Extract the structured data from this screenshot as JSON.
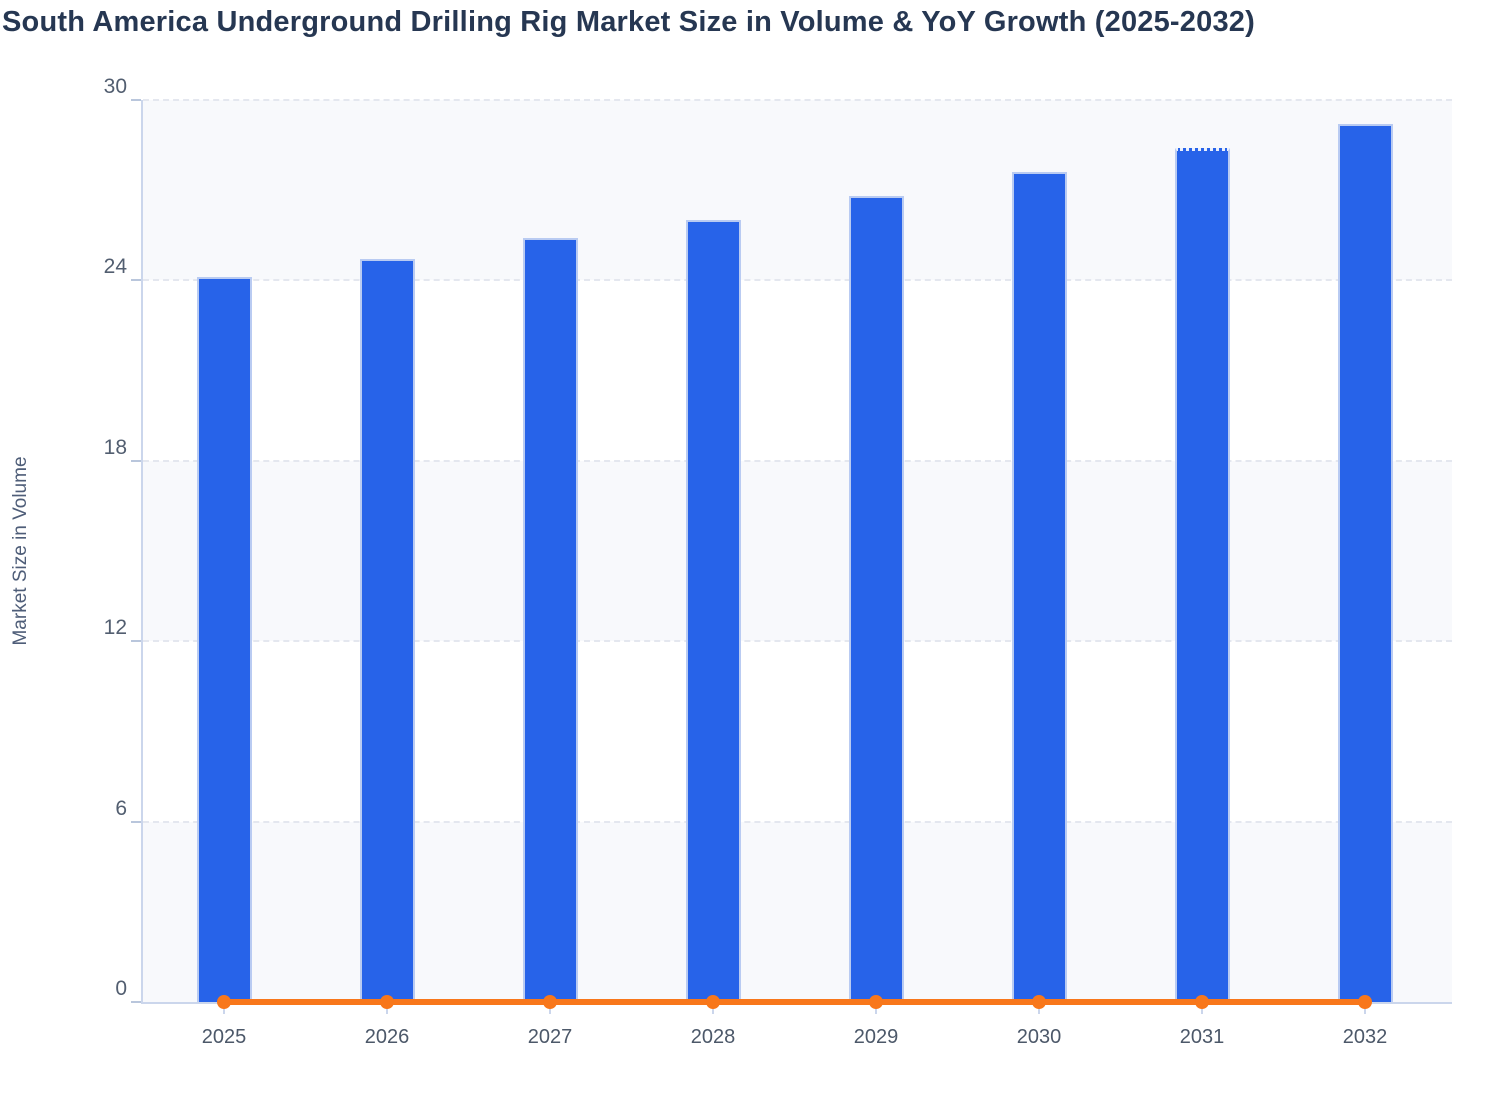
{
  "title": "South America Underground Drilling Rig Market Size in Volume & YoY Growth (2025-2032)",
  "colors": {
    "bar_fill": "#2763E9",
    "bar_border": "#B9CBF2",
    "line_orange": "#F8771B",
    "band_light": "#F8F9FC",
    "gridline": "#E4E7EF",
    "axis_line": "#CBD6EC",
    "title_text": "#263752",
    "tick_text": "#525E70"
  },
  "chart_data": {
    "type": "bar",
    "title": "South America Underground Drilling Rig Market Size in Volume & YoY Growth (2025-2032)",
    "xlabel": "",
    "ylabel": "Market Size in Volume",
    "categories": [
      "2025",
      "2026",
      "2027",
      "2028",
      "2029",
      "2030",
      "2031",
      "2032"
    ],
    "series": [
      {
        "name": "Market Size in Volume",
        "type": "bar",
        "color": "#2763E9",
        "values": [
          24.1,
          24.7,
          25.4,
          26.0,
          26.8,
          27.6,
          28.4,
          29.2
        ]
      },
      {
        "name": "YoY Growth",
        "type": "line",
        "color": "#F8771B",
        "values": [
          0,
          0,
          0,
          0,
          0,
          0,
          0,
          0
        ],
        "note": "line with circular markers plotted flat along the zero baseline"
      }
    ],
    "ylim": [
      0,
      30
    ],
    "yticks": [
      0,
      6,
      12,
      18,
      24,
      30
    ],
    "grid": "horizontal dashed",
    "legend_position": "none",
    "band_shading": "alternating light bands every 6 units starting at 0-6",
    "dotted_top_bar": "2031"
  }
}
